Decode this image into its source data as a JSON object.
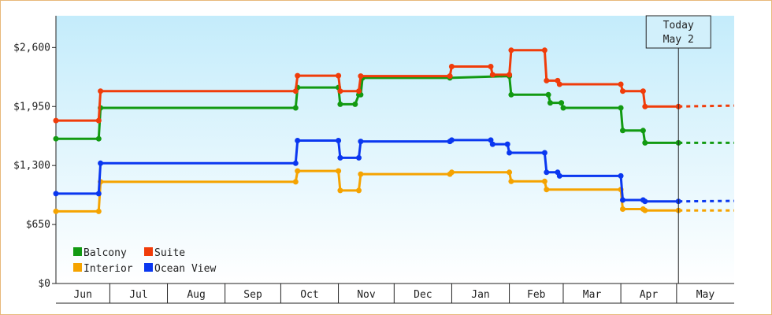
{
  "chart_data": {
    "type": "line",
    "step": true,
    "y_axis": {
      "min": 0,
      "max": 2950,
      "ticks": [
        0,
        650,
        1300,
        1950,
        2600
      ],
      "tick_labels": [
        "$0",
        "$650",
        "$1,300",
        "$1,950",
        "$2,600"
      ]
    },
    "x_axis": {
      "start": "2023-06-02",
      "end": "2024-05-31",
      "months": [
        {
          "label": "Jun",
          "start": "2023-06-01"
        },
        {
          "label": "Jul",
          "start": "2023-07-01"
        },
        {
          "label": "Aug",
          "start": "2023-08-01"
        },
        {
          "label": "Sep",
          "start": "2023-09-01"
        },
        {
          "label": "Oct",
          "start": "2023-10-01"
        },
        {
          "label": "Nov",
          "start": "2023-11-01"
        },
        {
          "label": "Dec",
          "start": "2023-12-01"
        },
        {
          "label": "Jan",
          "start": "2024-01-01"
        },
        {
          "label": "Feb",
          "start": "2024-02-01"
        },
        {
          "label": "Mar",
          "start": "2024-03-01"
        },
        {
          "label": "Apr",
          "start": "2024-04-01"
        },
        {
          "label": "May",
          "start": "2024-05-01"
        }
      ]
    },
    "today": {
      "line1": "Today",
      "line2": "May 2",
      "date": "2024-05-02"
    },
    "grid": false,
    "legend_position": "bottom-left",
    "series": [
      {
        "name": "Balcony",
        "color": "#129a12",
        "points": [
          [
            "2023-06-02",
            1595
          ],
          [
            "2023-06-25",
            1595
          ],
          [
            "2023-06-26",
            1935
          ],
          [
            "2023-10-09",
            1935
          ],
          [
            "2023-10-10",
            2160
          ],
          [
            "2023-11-01",
            2160
          ],
          [
            "2023-11-02",
            1975
          ],
          [
            "2023-11-10",
            1975
          ],
          [
            "2023-11-12",
            2080
          ],
          [
            "2023-11-13",
            2080
          ],
          [
            "2023-11-14",
            2265
          ],
          [
            "2023-12-31",
            2265
          ],
          [
            "2024-02-01",
            2285
          ],
          [
            "2024-02-02",
            2080
          ],
          [
            "2024-02-22",
            2080
          ],
          [
            "2024-02-23",
            1990
          ],
          [
            "2024-02-29",
            1990
          ],
          [
            "2024-03-01",
            1935
          ],
          [
            "2024-04-01",
            1935
          ],
          [
            "2024-04-02",
            1685
          ],
          [
            "2024-04-13",
            1685
          ],
          [
            "2024-04-14",
            1550
          ],
          [
            "2024-05-02",
            1550
          ]
        ],
        "forecast": 1550
      },
      {
        "name": "Suite",
        "color": "#f03c0a",
        "points": [
          [
            "2023-06-02",
            1795
          ],
          [
            "2023-06-25",
            1795
          ],
          [
            "2023-06-26",
            2120
          ],
          [
            "2023-10-09",
            2120
          ],
          [
            "2023-10-10",
            2290
          ],
          [
            "2023-11-01",
            2290
          ],
          [
            "2023-11-02",
            2120
          ],
          [
            "2023-11-12",
            2120
          ],
          [
            "2023-11-13",
            2285
          ],
          [
            "2023-12-31",
            2285
          ],
          [
            "2024-01-01",
            2390
          ],
          [
            "2024-01-22",
            2390
          ],
          [
            "2024-01-23",
            2300
          ],
          [
            "2024-02-01",
            2300
          ],
          [
            "2024-02-02",
            2570
          ],
          [
            "2024-02-20",
            2570
          ],
          [
            "2024-02-21",
            2235
          ],
          [
            "2024-02-27",
            2235
          ],
          [
            "2024-02-28",
            2195
          ],
          [
            "2024-04-01",
            2195
          ],
          [
            "2024-04-02",
            2120
          ],
          [
            "2024-04-13",
            2120
          ],
          [
            "2024-04-14",
            1950
          ],
          [
            "2024-05-02",
            1950
          ]
        ],
        "forecast": 1960
      },
      {
        "name": "Interior",
        "color": "#f5a300",
        "points": [
          [
            "2023-06-02",
            795
          ],
          [
            "2023-06-25",
            795
          ],
          [
            "2023-06-26",
            1120
          ],
          [
            "2023-10-09",
            1120
          ],
          [
            "2023-10-10",
            1240
          ],
          [
            "2023-11-01",
            1240
          ],
          [
            "2023-11-02",
            1025
          ],
          [
            "2023-11-12",
            1025
          ],
          [
            "2023-11-13",
            1205
          ],
          [
            "2023-12-31",
            1205
          ],
          [
            "2024-01-01",
            1225
          ],
          [
            "2024-02-01",
            1225
          ],
          [
            "2024-02-02",
            1125
          ],
          [
            "2024-02-20",
            1125
          ],
          [
            "2024-02-21",
            1035
          ],
          [
            "2024-04-01",
            1035
          ],
          [
            "2024-04-02",
            820
          ],
          [
            "2024-04-13",
            820
          ],
          [
            "2024-04-14",
            805
          ],
          [
            "2024-05-02",
            805
          ]
        ],
        "forecast": 805
      },
      {
        "name": "Ocean View",
        "color": "#0a37f0",
        "points": [
          [
            "2023-06-02",
            990
          ],
          [
            "2023-06-25",
            990
          ],
          [
            "2023-06-26",
            1325
          ],
          [
            "2023-10-09",
            1325
          ],
          [
            "2023-10-10",
            1575
          ],
          [
            "2023-11-01",
            1575
          ],
          [
            "2023-11-02",
            1385
          ],
          [
            "2023-11-12",
            1385
          ],
          [
            "2023-11-13",
            1565
          ],
          [
            "2023-12-31",
            1565
          ],
          [
            "2024-01-01",
            1580
          ],
          [
            "2024-01-22",
            1580
          ],
          [
            "2024-01-23",
            1535
          ],
          [
            "2024-01-31",
            1535
          ],
          [
            "2024-02-01",
            1440
          ],
          [
            "2024-02-20",
            1440
          ],
          [
            "2024-02-21",
            1225
          ],
          [
            "2024-02-27",
            1225
          ],
          [
            "2024-02-28",
            1185
          ],
          [
            "2024-04-01",
            1185
          ],
          [
            "2024-04-02",
            920
          ],
          [
            "2024-04-13",
            920
          ],
          [
            "2024-04-14",
            905
          ],
          [
            "2024-05-02",
            905
          ]
        ],
        "forecast": 910
      }
    ]
  }
}
